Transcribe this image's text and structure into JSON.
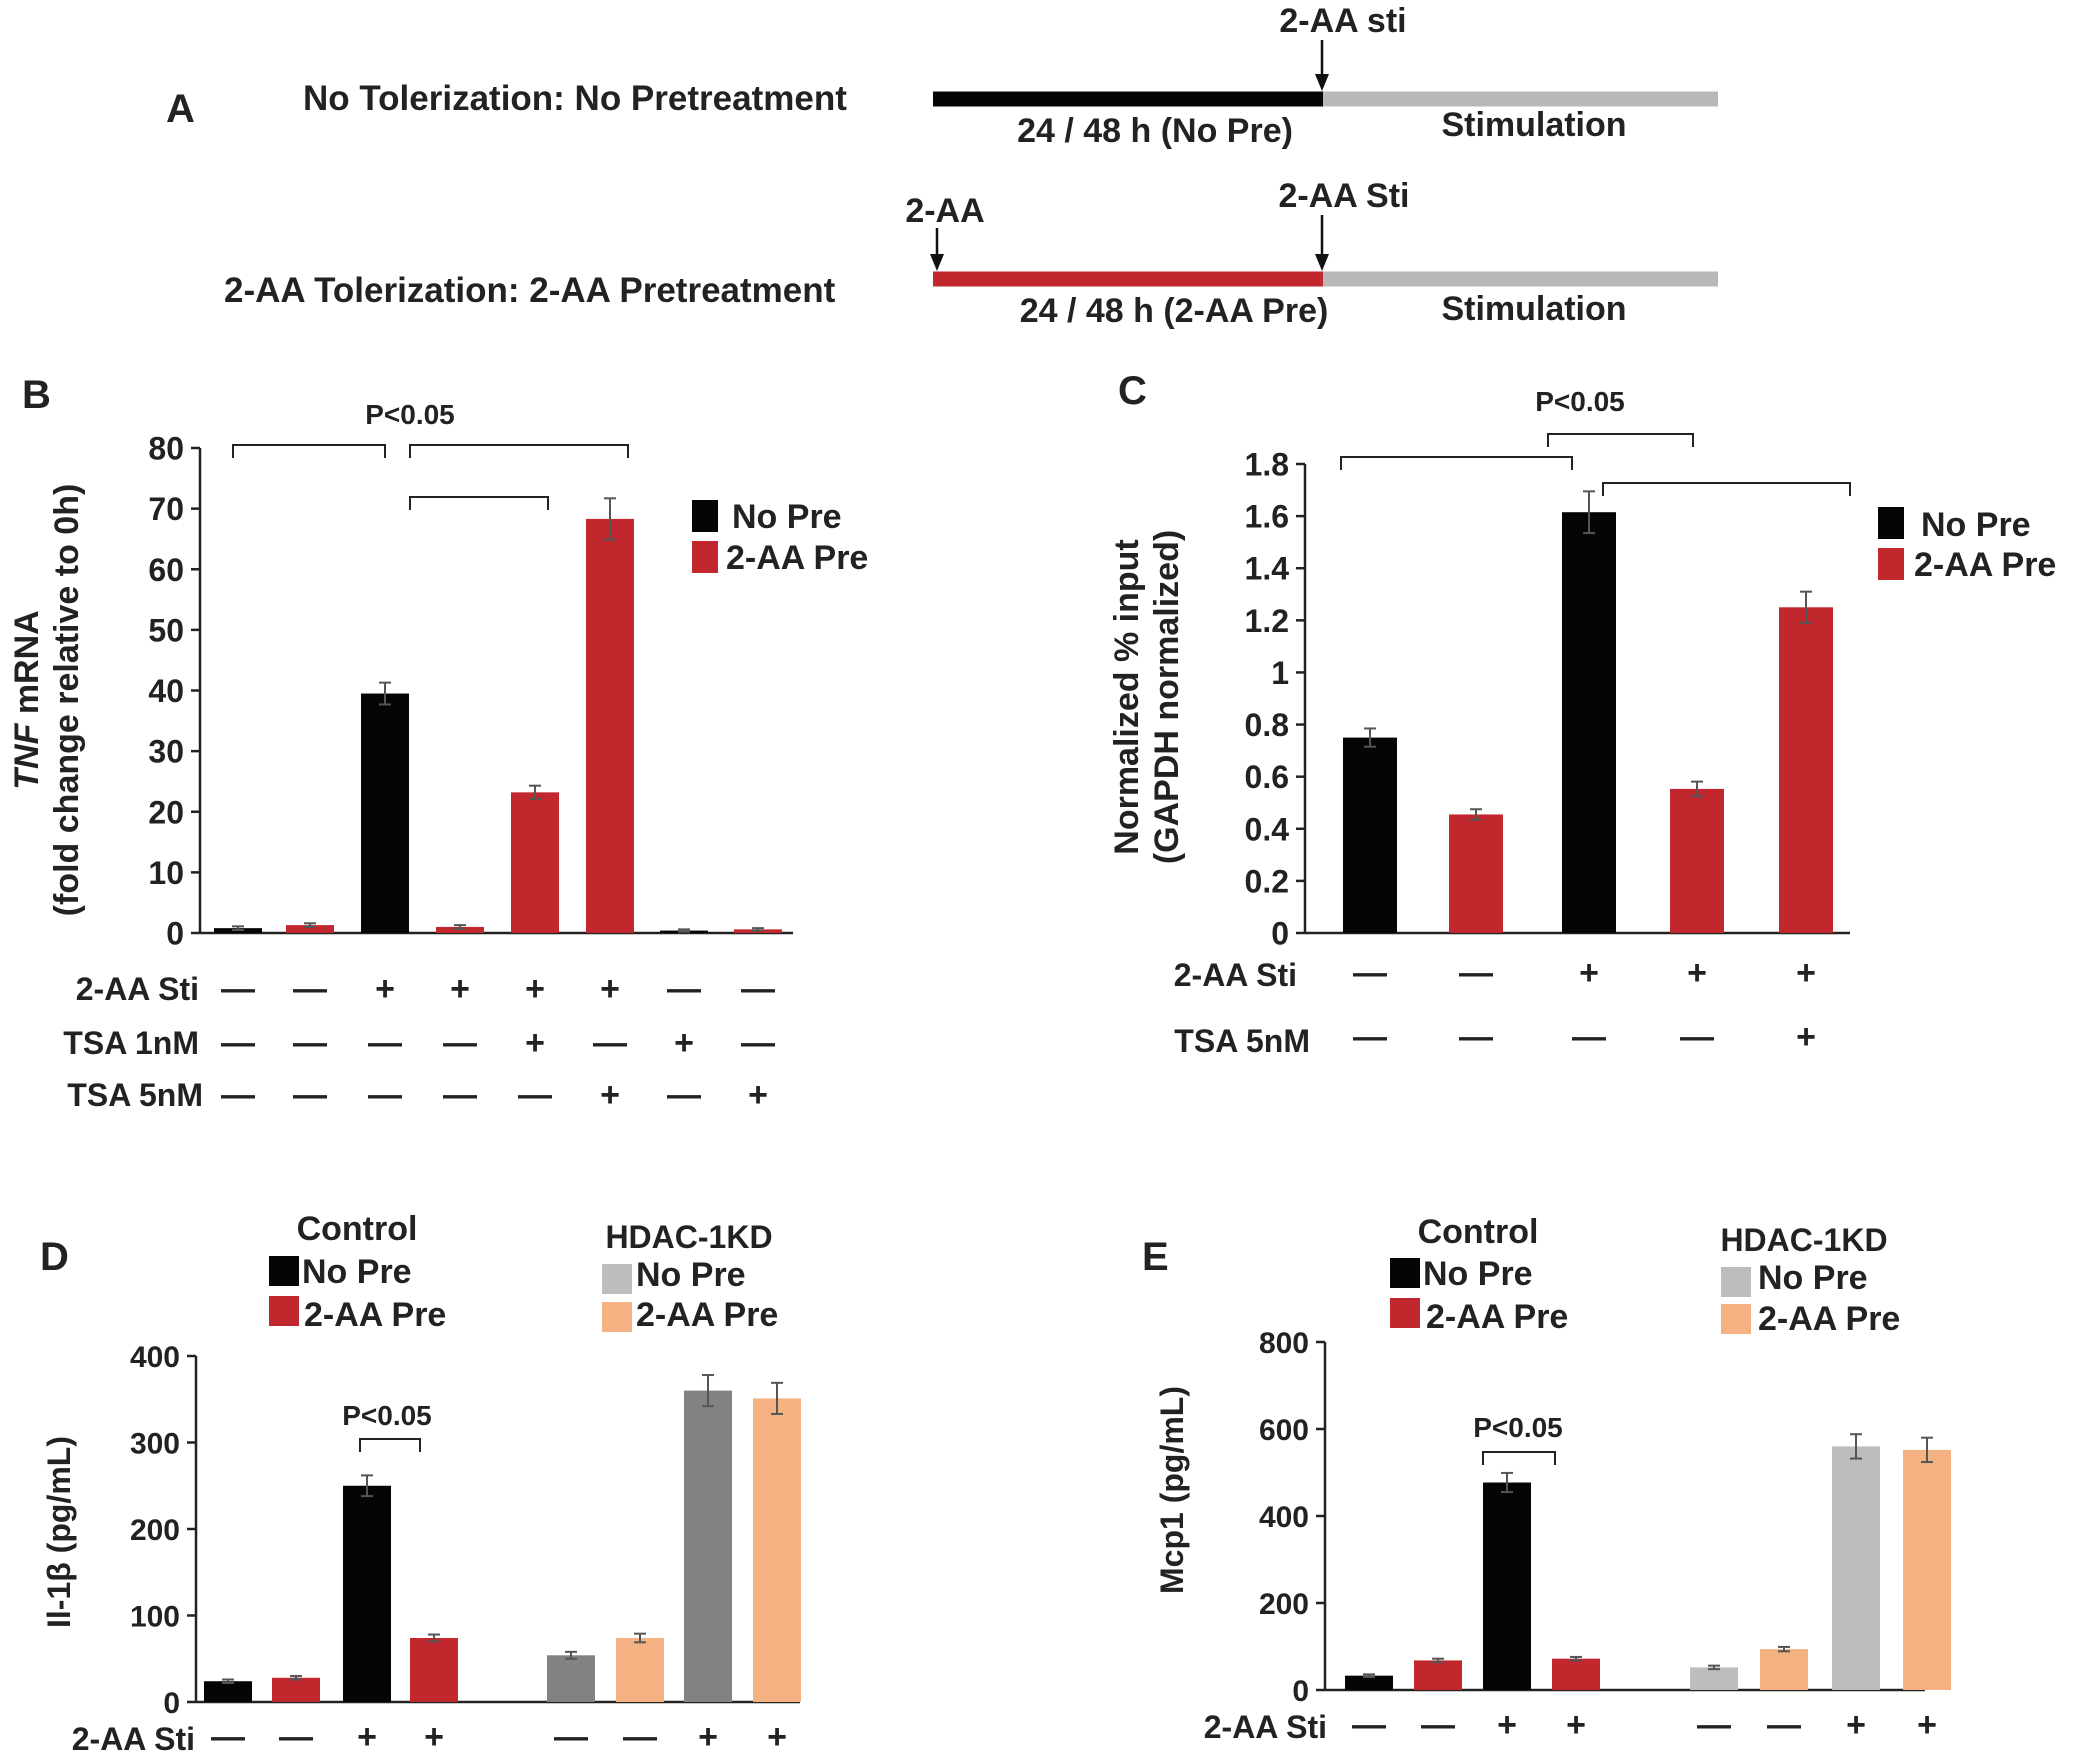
{
  "colors": {
    "no_pre": "#050505",
    "aa_pre": "#c1272d",
    "kd_no_pre": "#bdbdbd",
    "kd_no_pre_dark": "#828282",
    "kd_aa_pre": "#f4b283",
    "timeline_gray": "#b8b8b8",
    "axis": "#222222"
  },
  "panel_a": {
    "label": "A",
    "row1": {
      "title": "No Tolerization: No Pretreatment",
      "arrow_label": "2-AA sti",
      "pre_label": "24 / 48 h (No Pre)",
      "stim_label": "Stimulation"
    },
    "row2": {
      "title": "2-AA Tolerization: 2-AA Pretreatment",
      "start_arrow_label": "2-AA",
      "arrow_label": "2-AA Sti",
      "pre_label": "24 / 48 h (2-AA Pre)",
      "stim_label": "Stimulation"
    }
  },
  "chart_data": [
    {
      "panel": "B",
      "type": "bar",
      "ylabel_gene": "TNF",
      "ylabel_rest": " mRNA",
      "ylabel_line2": "(fold change relative to 0h)",
      "ylim": [
        0,
        80
      ],
      "yticks": [
        0,
        10,
        20,
        30,
        40,
        50,
        60,
        70,
        80
      ],
      "legend": [
        {
          "name": "No Pre",
          "color": "no_pre"
        },
        {
          "name": "2-AA Pre",
          "color": "aa_pre"
        }
      ],
      "bars": [
        {
          "value": 0.8,
          "error": 0.3,
          "color": "no_pre"
        },
        {
          "value": 1.3,
          "error": 0.3,
          "color": "aa_pre"
        },
        {
          "value": 39.5,
          "error": 1.8,
          "color": "no_pre"
        },
        {
          "value": 1.0,
          "error": 0.3,
          "color": "aa_pre"
        },
        {
          "value": 23.2,
          "error": 1.1,
          "color": "aa_pre"
        },
        {
          "value": 68.3,
          "error": 3.4,
          "color": "aa_pre"
        },
        {
          "value": 0.4,
          "error": 0.2,
          "color": "no_pre"
        },
        {
          "value": 0.6,
          "error": 0.2,
          "color": "aa_pre"
        }
      ],
      "conditions": [
        {
          "label": "2-AA Sti",
          "values": [
            "—",
            "—",
            "+",
            "+",
            "+",
            "+",
            "—",
            "—"
          ]
        },
        {
          "label": "TSA 1nM",
          "values": [
            "—",
            "—",
            "—",
            "—",
            "+",
            "—",
            "+",
            "—"
          ]
        },
        {
          "label": "TSA 5nM",
          "values": [
            "—",
            "—",
            "—",
            "—",
            "—",
            "+",
            "—",
            "+"
          ]
        }
      ],
      "significance": "P<0.05"
    },
    {
      "panel": "C",
      "type": "bar",
      "ylabel": "Normalized % input",
      "ylabel_line2": "(GAPDH normalized)",
      "ylim": [
        0,
        1.8
      ],
      "yticks": [
        0,
        0.2,
        0.4,
        0.6,
        0.8,
        1,
        1.2,
        1.4,
        1.6,
        1.8
      ],
      "legend": [
        {
          "name": "No Pre",
          "color": "no_pre"
        },
        {
          "name": "2-AA Pre",
          "color": "aa_pre"
        }
      ],
      "bars": [
        {
          "value": 0.75,
          "error": 0.035,
          "color": "no_pre"
        },
        {
          "value": 0.455,
          "error": 0.02,
          "color": "aa_pre"
        },
        {
          "value": 1.615,
          "error": 0.08,
          "color": "no_pre"
        },
        {
          "value": 0.553,
          "error": 0.028,
          "color": "aa_pre"
        },
        {
          "value": 1.25,
          "error": 0.06,
          "color": "aa_pre"
        }
      ],
      "conditions": [
        {
          "label": "2-AA Sti",
          "values": [
            "—",
            "—",
            "+",
            "+",
            "+"
          ]
        },
        {
          "label": "TSA 5nM",
          "values": [
            "—",
            "—",
            "—",
            "—",
            "+"
          ]
        }
      ],
      "significance": "P<0.05"
    },
    {
      "panel": "D",
      "type": "bar",
      "ylabel": "Il-1β (pg/mL)",
      "ylim": [
        0,
        400
      ],
      "yticks": [
        0,
        100,
        200,
        300,
        400
      ],
      "legend_groups": [
        {
          "title": "Control",
          "items": [
            {
              "name": "No Pre",
              "color": "no_pre"
            },
            {
              "name": "2-AA Pre",
              "color": "aa_pre"
            }
          ]
        },
        {
          "title": "HDAC-1KD",
          "items": [
            {
              "name": "No Pre",
              "color": "kd_no_pre"
            },
            {
              "name": "2-AA Pre",
              "color": "kd_aa_pre"
            }
          ]
        }
      ],
      "bars": [
        {
          "value": 24,
          "error": 2,
          "color": "no_pre"
        },
        {
          "value": 28,
          "error": 2,
          "color": "aa_pre"
        },
        {
          "value": 250,
          "error": 12,
          "color": "no_pre"
        },
        {
          "value": 74,
          "error": 4,
          "color": "aa_pre"
        },
        {
          "value": 54,
          "error": 4,
          "color": "kd_no_pre_dark"
        },
        {
          "value": 74,
          "error": 5,
          "color": "kd_aa_pre"
        },
        {
          "value": 360,
          "error": 18,
          "color": "kd_no_pre_dark"
        },
        {
          "value": 351,
          "error": 18,
          "color": "kd_aa_pre"
        }
      ],
      "conditions": [
        {
          "label": "2-AA Sti",
          "values": [
            "—",
            "—",
            "+",
            "+",
            "—",
            "—",
            "+",
            "+"
          ]
        }
      ],
      "significance": "P<0.05"
    },
    {
      "panel": "E",
      "type": "bar",
      "ylabel": "Mcp1 (pg/mL)",
      "ylim": [
        0,
        800
      ],
      "yticks": [
        0,
        200,
        400,
        600,
        800
      ],
      "legend_groups": [
        {
          "title": "Control",
          "items": [
            {
              "name": "No Pre",
              "color": "no_pre"
            },
            {
              "name": "2-AA Pre",
              "color": "aa_pre"
            }
          ]
        },
        {
          "title": "HDAC-1KD",
          "items": [
            {
              "name": "No Pre",
              "color": "kd_no_pre"
            },
            {
              "name": "2-AA Pre",
              "color": "kd_aa_pre"
            }
          ]
        }
      ],
      "bars": [
        {
          "value": 33,
          "error": 3,
          "color": "no_pre"
        },
        {
          "value": 68,
          "error": 4,
          "color": "aa_pre"
        },
        {
          "value": 477,
          "error": 22,
          "color": "no_pre"
        },
        {
          "value": 72,
          "error": 4,
          "color": "aa_pre"
        },
        {
          "value": 52,
          "error": 4,
          "color": "kd_no_pre"
        },
        {
          "value": 94,
          "error": 5,
          "color": "kd_aa_pre"
        },
        {
          "value": 560,
          "error": 28,
          "color": "kd_no_pre"
        },
        {
          "value": 552,
          "error": 28,
          "color": "kd_aa_pre"
        }
      ],
      "conditions": [
        {
          "label": "2-AA Sti",
          "values": [
            "—",
            "—",
            "+",
            "+",
            "—",
            "—",
            "+",
            "+"
          ]
        }
      ],
      "significance": "P<0.05"
    }
  ]
}
